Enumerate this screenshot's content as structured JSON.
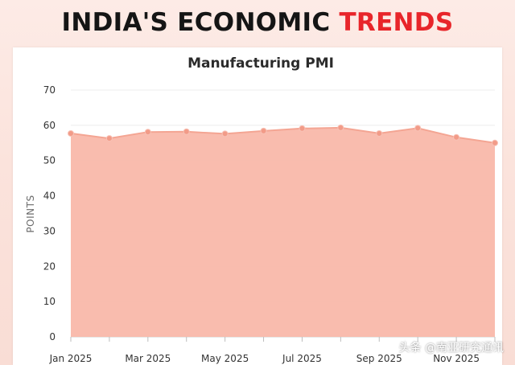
{
  "header": {
    "title_main": "INDIA'S ECONOMIC ",
    "title_accent": "TRENDS"
  },
  "colors": {
    "accent": "#e8252a",
    "area_fill": "#f9b8aa",
    "line": "#f4a593",
    "marker": "#f29b88"
  },
  "chart_data": {
    "type": "area",
    "title": "Manufacturing PMI",
    "xlabel": "",
    "ylabel": "POINTS",
    "ylim": [
      0,
      70
    ],
    "yticks": [
      0,
      10,
      20,
      30,
      40,
      50,
      60,
      70
    ],
    "x": [
      "Jan 2025",
      "Feb 2025",
      "Mar 2025",
      "Apr 2025",
      "May 2025",
      "Jun 2025",
      "Jul 2025",
      "Aug 2025",
      "Sep 2025",
      "Oct 2025",
      "Nov 2025",
      "Dec 2025"
    ],
    "xtick_labels": [
      "Jan 2025",
      "",
      "Mar 2025",
      "",
      "May 2025",
      "",
      "Jul 2025",
      "",
      "Sep 2025",
      "",
      "Nov 2025",
      ""
    ],
    "series": [
      {
        "name": "Manufacturing PMI",
        "values": [
          57.7,
          56.3,
          58.1,
          58.2,
          57.6,
          58.4,
          59.1,
          59.3,
          57.7,
          59.2,
          56.6,
          55.0
        ]
      }
    ],
    "grid": true
  },
  "watermark": "头条 @南亚研究通讯"
}
